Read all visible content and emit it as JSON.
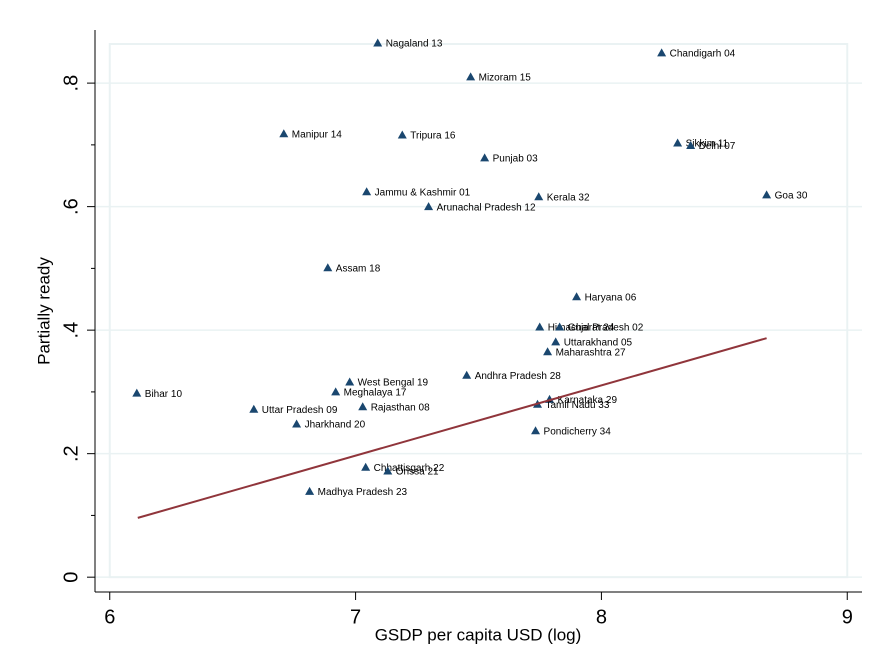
{
  "chart_data": {
    "type": "scatter",
    "xlabel": "GSDP per capita USD (log)",
    "ylabel": "Partially ready",
    "xlim": [
      5.94,
      9.06
    ],
    "ylim": [
      -0.024,
      0.886
    ],
    "xticks": [
      6,
      7,
      8,
      9
    ],
    "yticks": [
      0,
      {
        "value": 0.2,
        "label": ".2"
      },
      {
        "value": 0.4,
        "label": ".4"
      },
      {
        "value": 0.6,
        "label": ".6"
      },
      {
        "value": 0.8,
        "label": ".8"
      }
    ],
    "yminor": [
      0.1,
      0.3,
      0.5,
      0.7
    ],
    "grid": true,
    "series": [
      {
        "type": "scatter",
        "color": "#1a476f",
        "labels": [
          "Nagaland 13",
          "Chandigarh 04",
          "Mizoram 15",
          "Manipur 14",
          "Tripura 16",
          "Sikkim 11",
          "Delhi 07",
          "Punjab 03",
          "Jammu & Kashmir 01",
          "Kerala 32",
          "Goa 30",
          "Arunachal Pradesh 12",
          "Assam 18",
          "Haryana 06",
          "Himachal Pradesh 02",
          "Gujarat 24",
          "Uttarakhand 05",
          "Maharashtra 27",
          "Andhra Pradesh 28",
          "West Bengal 19",
          "Meghalaya 17",
          "Bihar 10",
          "Karnataka 29",
          "Tamil Nadu 33",
          "Uttar Pradesh 09",
          "Rajasthan 08",
          "Jharkhand 20",
          "Pondicherry 34",
          "Chhattisgarh 22",
          "Orissa 21",
          "Madhya Pradesh 23"
        ],
        "x": [
          7.09,
          8.245,
          7.468,
          6.708,
          7.19,
          8.31,
          8.363,
          7.525,
          7.045,
          7.745,
          8.672,
          7.297,
          6.887,
          7.899,
          7.749,
          7.83,
          7.814,
          7.781,
          7.452,
          6.976,
          6.919,
          6.11,
          7.789,
          7.74,
          6.586,
          7.029,
          6.76,
          7.732,
          7.041,
          7.131,
          6.813
        ],
        "values": [
          0.865,
          0.849,
          0.81,
          0.718,
          0.716,
          0.703,
          0.699,
          0.679,
          0.624,
          0.616,
          0.619,
          0.6,
          0.501,
          0.454,
          0.405,
          0.405,
          0.381,
          0.365,
          0.327,
          0.316,
          0.3,
          0.298,
          0.288,
          0.28,
          0.272,
          0.276,
          0.248,
          0.237,
          0.178,
          0.172,
          0.139
        ]
      },
      {
        "type": "line",
        "color": "#90353b",
        "x": [
          6.114,
          8.672
        ],
        "values": [
          0.096,
          0.387
        ]
      }
    ]
  }
}
